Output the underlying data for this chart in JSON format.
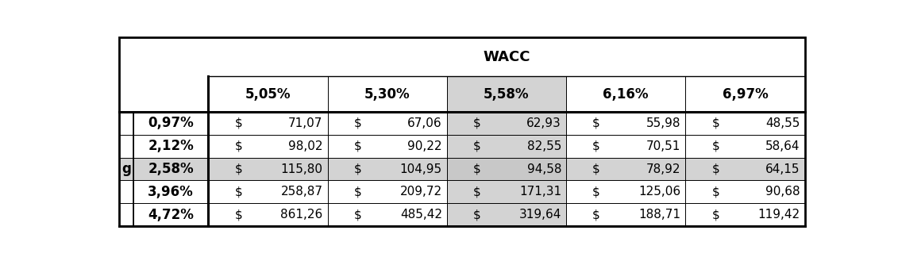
{
  "title": "WACC",
  "row_header_label": "g",
  "col_headers": [
    "5,05%",
    "5,30%",
    "5,58%",
    "6,16%",
    "6,97%"
  ],
  "row_headers": [
    "0,97%",
    "2,12%",
    "2,58%",
    "3,96%",
    "4,72%"
  ],
  "values": [
    [
      "$",
      "71,07",
      "$",
      "67,06",
      "$",
      "62,93",
      "$",
      "55,98",
      "$",
      "48,55"
    ],
    [
      "$",
      "98,02",
      "$",
      "90,22",
      "$",
      "82,55",
      "$",
      "70,51",
      "$",
      "58,64"
    ],
    [
      "$",
      "115,80",
      "$",
      "104,95",
      "$",
      "94,58",
      "$",
      "78,92",
      "$",
      "64,15"
    ],
    [
      "$",
      "258,87",
      "$",
      "209,72",
      "$",
      "171,31",
      "$",
      "125,06",
      "$",
      "90,68"
    ],
    [
      "$",
      "861,26",
      "$",
      "485,42",
      "$",
      "319,64",
      "$",
      "188,71",
      "$",
      "119,42"
    ]
  ],
  "highlight_col": 2,
  "highlight_row": 2,
  "highlight_col_color": "#d3d3d3",
  "highlight_row_color": "#d3d3d3",
  "highlight_cross_color": "#c8c8c8",
  "white": "#ffffff",
  "black": "#000000",
  "fig_w": 11.31,
  "fig_h": 3.29,
  "dpi": 100
}
